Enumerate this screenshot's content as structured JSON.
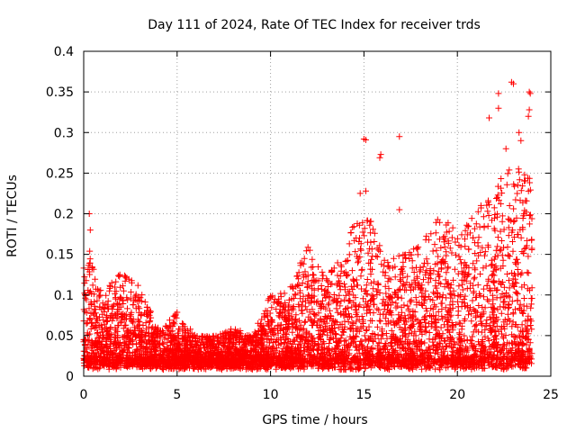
{
  "chart_data": {
    "type": "scatter",
    "title": "Day 111 of 2024, Rate Of TEC Index for receiver trds",
    "xlabel": "GPS time / hours",
    "ylabel": "ROTI / TECUs",
    "xlim": [
      0,
      25
    ],
    "ylim": [
      0,
      0.4
    ],
    "xticks": [
      0,
      5,
      10,
      15,
      20,
      25
    ],
    "yticks": [
      0,
      0.05,
      0.1,
      0.15,
      0.2,
      0.25,
      0.3,
      0.35,
      0.4
    ],
    "xtick_labels": [
      "0",
      "5",
      "10",
      "15",
      "20",
      "25"
    ],
    "ytick_labels": [
      "0",
      "0.05",
      "0.1",
      "0.15",
      "0.2",
      "0.25",
      "0.3",
      "0.35",
      "0.4"
    ],
    "grid": true,
    "marker": "+",
    "color": "#ff0000",
    "x_range_of_data": [
      0,
      24
    ],
    "envelope": {
      "hours": [
        0,
        0.3,
        1,
        2,
        3,
        4,
        5,
        6,
        7,
        8,
        9,
        10,
        11,
        12,
        13,
        14,
        15,
        16,
        17,
        18,
        19,
        20,
        21,
        22,
        23,
        24
      ],
      "upper_roti": [
        0.14,
        0.16,
        0.1,
        0.13,
        0.11,
        0.06,
        0.08,
        0.05,
        0.05,
        0.06,
        0.05,
        0.1,
        0.11,
        0.16,
        0.12,
        0.16,
        0.22,
        0.15,
        0.15,
        0.16,
        0.2,
        0.18,
        0.2,
        0.24,
        0.26,
        0.25
      ]
    },
    "notable_points": [
      {
        "x": 0.3,
        "y": 0.2
      },
      {
        "x": 0.35,
        "y": 0.18
      },
      {
        "x": 15.0,
        "y": 0.292
      },
      {
        "x": 15.1,
        "y": 0.291
      },
      {
        "x": 15.9,
        "y": 0.273
      },
      {
        "x": 15.85,
        "y": 0.269
      },
      {
        "x": 16.9,
        "y": 0.295
      },
      {
        "x": 16.9,
        "y": 0.205
      },
      {
        "x": 21.7,
        "y": 0.318
      },
      {
        "x": 22.2,
        "y": 0.348
      },
      {
        "x": 22.2,
        "y": 0.33
      },
      {
        "x": 22.9,
        "y": 0.362
      },
      {
        "x": 23.0,
        "y": 0.36
      },
      {
        "x": 23.85,
        "y": 0.35
      },
      {
        "x": 23.9,
        "y": 0.348
      },
      {
        "x": 23.85,
        "y": 0.328
      },
      {
        "x": 23.8,
        "y": 0.32
      },
      {
        "x": 22.6,
        "y": 0.28
      },
      {
        "x": 23.4,
        "y": 0.29
      },
      {
        "x": 23.3,
        "y": 0.3
      },
      {
        "x": 14.8,
        "y": 0.225
      },
      {
        "x": 15.1,
        "y": 0.228
      }
    ]
  }
}
